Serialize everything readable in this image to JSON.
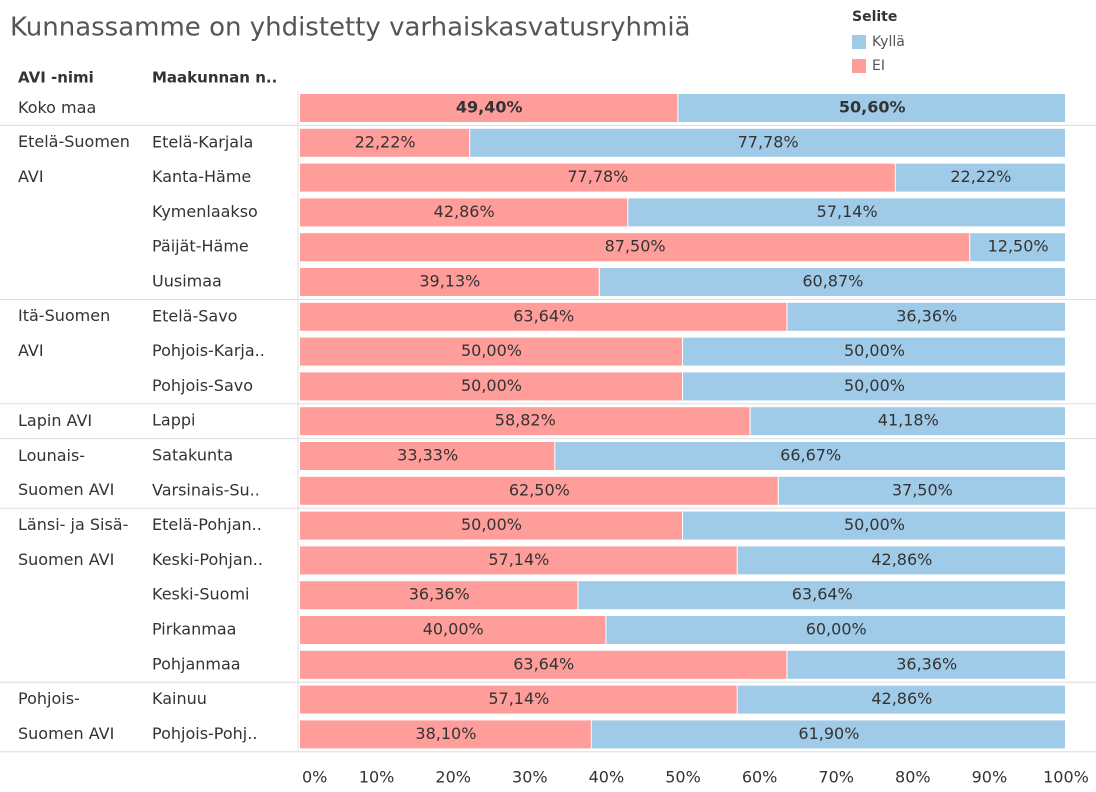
{
  "chart_data": {
    "type": "stacked_bar_horizontal",
    "title": "Kunnassamme on yhdistetty varhaiskasvatusryhmiä",
    "column_headers": [
      "AVI -nimi",
      "Maakunnan n.."
    ],
    "legend_title": "Selite",
    "groups": [
      {
        "name": "Koko maa",
        "categories": [
          null
        ]
      },
      {
        "name": "Etelä-Suomen AVI",
        "categories": [
          "Etelä-Karjala",
          "Kanta-Häme",
          "Kymenlaakso",
          "Päijät-Häme",
          "Uusimaa"
        ]
      },
      {
        "name": "Itä-Suomen AVI",
        "categories": [
          "Etelä-Savo",
          "Pohjois-Karja..",
          "Pohjois-Savo"
        ]
      },
      {
        "name": "Lapin AVI",
        "categories": [
          "Lappi"
        ]
      },
      {
        "name": "Lounais-Suomen AVI",
        "categories": [
          "Satakunta",
          "Varsinais-Su.."
        ]
      },
      {
        "name": "Länsi- ja Sisä-Suomen AVI",
        "categories": [
          "Etelä-Pohjan..",
          "Keski-Pohjan..",
          "Keski-Suomi",
          "Pirkanmaa",
          "Pohjanmaa"
        ]
      },
      {
        "name": "Pohjois-Suomen AVI",
        "categories": [
          "Kainuu",
          "Pohjois-Pohj.."
        ]
      }
    ],
    "series": [
      {
        "name": "Kyllä",
        "color": "#a0cbe8",
        "values": [
          50.6,
          77.78,
          22.22,
          57.14,
          12.5,
          60.87,
          36.36,
          50,
          50,
          41.18,
          66.67,
          37.5,
          50,
          42.86,
          63.64,
          60,
          36.36,
          42.86,
          61.9
        ],
        "value_labels": [
          "50,60%",
          "77,78%",
          "22,22%",
          "57,14%",
          "12,50%",
          "60,87%",
          "36,36%",
          "50,00%",
          "50,00%",
          "41,18%",
          "66,67%",
          "37,50%",
          "50,00%",
          "42,86%",
          "63,64%",
          "60,00%",
          "36,36%",
          "42,86%",
          "61,90%"
        ]
      },
      {
        "name": "EI",
        "color": "#ff9d9a",
        "values": [
          49.4,
          22.22,
          77.78,
          42.86,
          87.5,
          39.13,
          63.64,
          50,
          50,
          58.82,
          33.33,
          62.5,
          50,
          57.14,
          36.36,
          40,
          63.64,
          57.14,
          38.1
        ],
        "value_labels": [
          "49,40%",
          "22,22%",
          "77,78%",
          "42,86%",
          "87,50%",
          "39,13%",
          "63,64%",
          "50,00%",
          "50,00%",
          "58,82%",
          "33,33%",
          "62,50%",
          "50,00%",
          "57,14%",
          "36,36%",
          "40,00%",
          "63,64%",
          "57,14%",
          "38,10%"
        ]
      }
    ],
    "xlim": [
      0,
      100
    ],
    "xticks": [
      {
        "value": 0,
        "label": "0%"
      },
      {
        "value": 10,
        "label": "10%"
      },
      {
        "value": 20,
        "label": "20%"
      },
      {
        "value": 30,
        "label": "30%"
      },
      {
        "value": 40,
        "label": "40%"
      },
      {
        "value": 50,
        "label": "50%"
      },
      {
        "value": 60,
        "label": "60%"
      },
      {
        "value": 70,
        "label": "70%"
      },
      {
        "value": 80,
        "label": "80%"
      },
      {
        "value": 90,
        "label": "90%"
      },
      {
        "value": 100,
        "label": "100%"
      }
    ]
  }
}
